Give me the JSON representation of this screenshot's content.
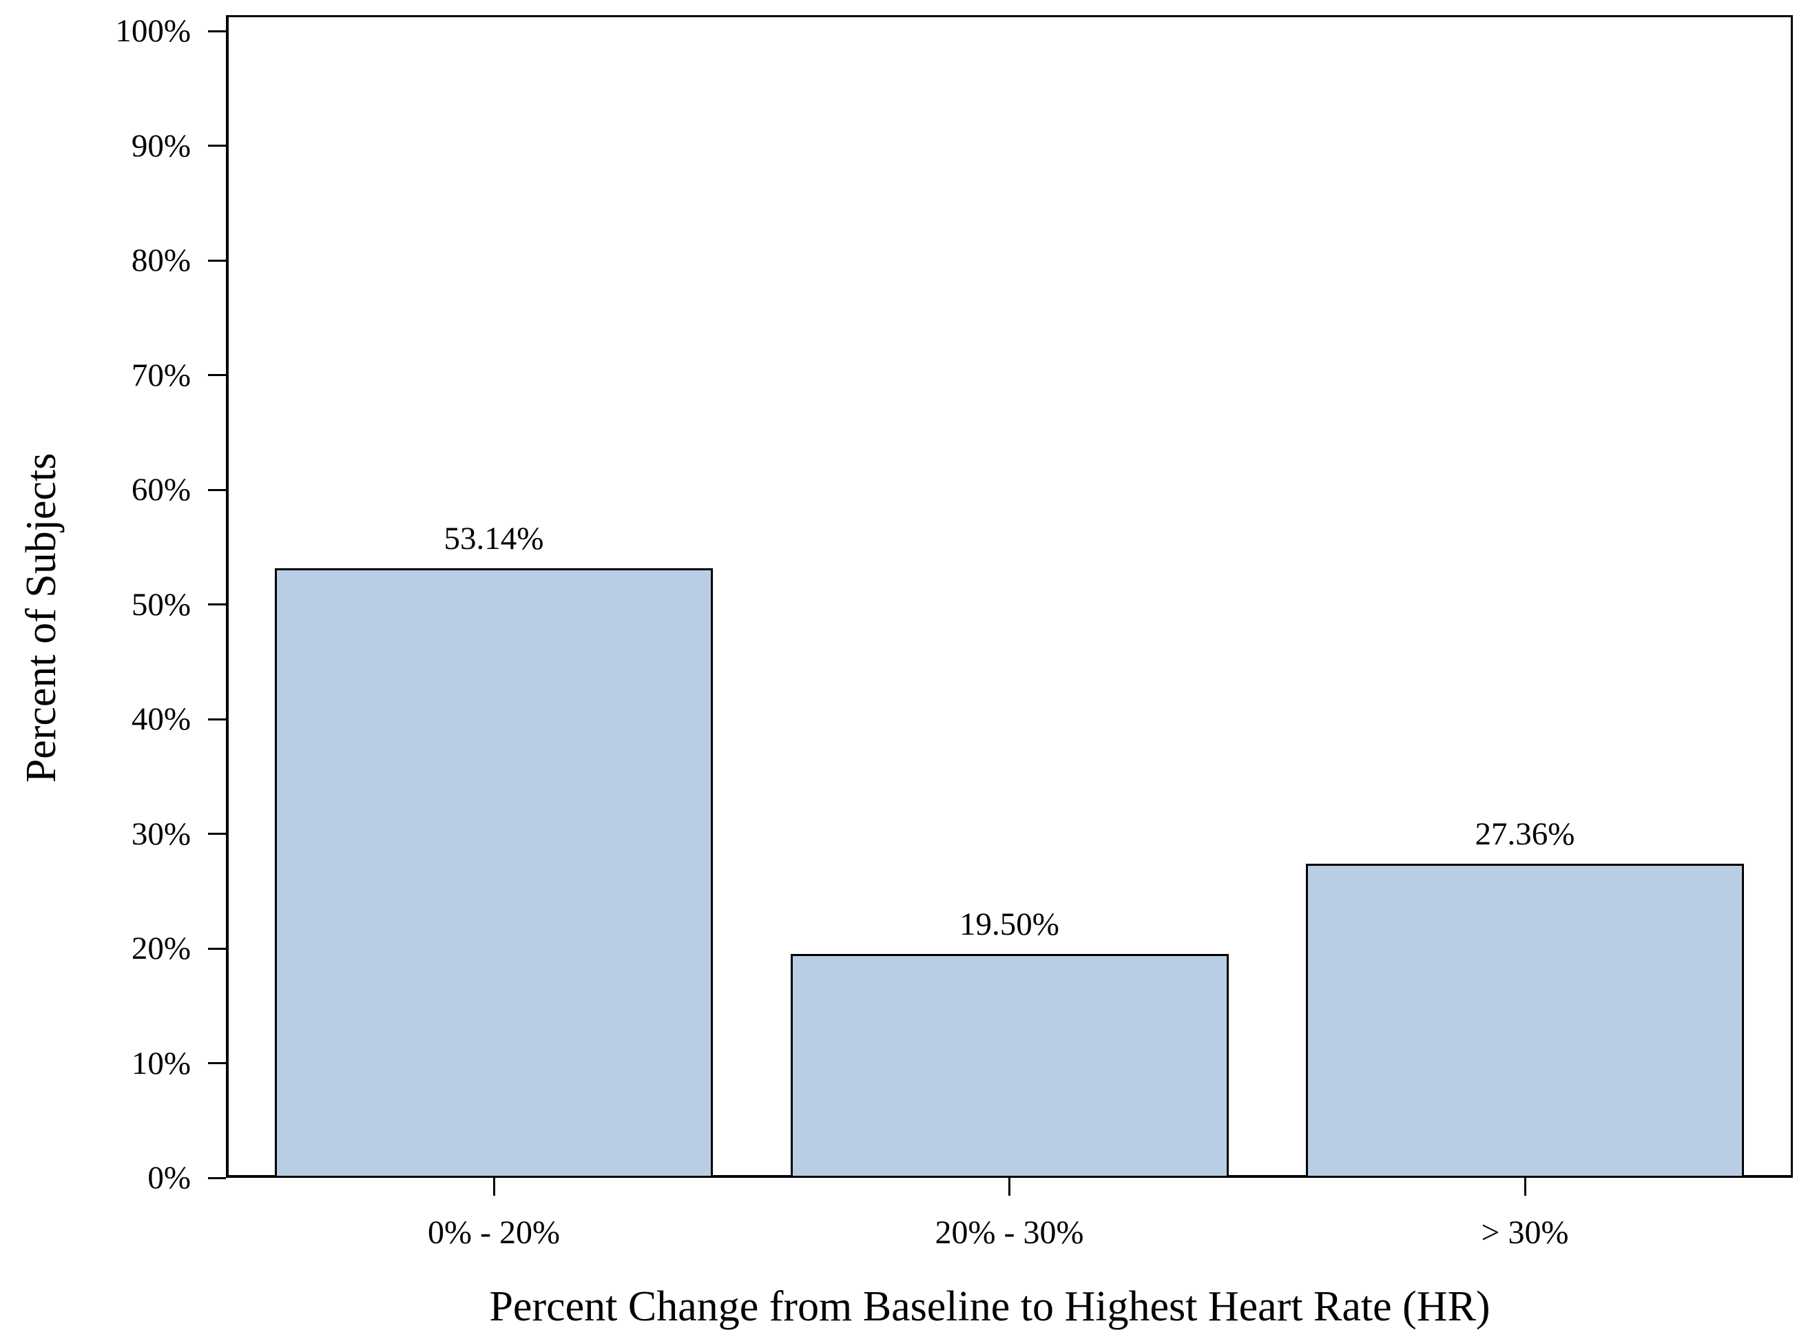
{
  "chart_data": {
    "type": "bar",
    "title": "",
    "categories": [
      "0% - 20%",
      "20% - 30%",
      "> 30%"
    ],
    "values": [
      53.14,
      19.5,
      27.36
    ],
    "bar_value_labels": [
      "53.14%",
      "19.50%",
      "27.36%"
    ],
    "xlabel": "Percent Change from Baseline to Highest Heart Rate (HR)",
    "ylabel": "Percent of Subjects",
    "ylim": [
      0,
      100
    ],
    "ytick_step": 10,
    "ytick_labels": [
      "0%",
      "10%",
      "20%",
      "30%",
      "40%",
      "50%",
      "60%",
      "70%",
      "80%",
      "90%",
      "100%"
    ],
    "grid": false,
    "legend": null,
    "colors": {
      "bar_fill": "#B9CDE5",
      "bar_border": "#000000",
      "axis": "#000000",
      "text": "#000000",
      "background": "#FFFFFF"
    }
  }
}
